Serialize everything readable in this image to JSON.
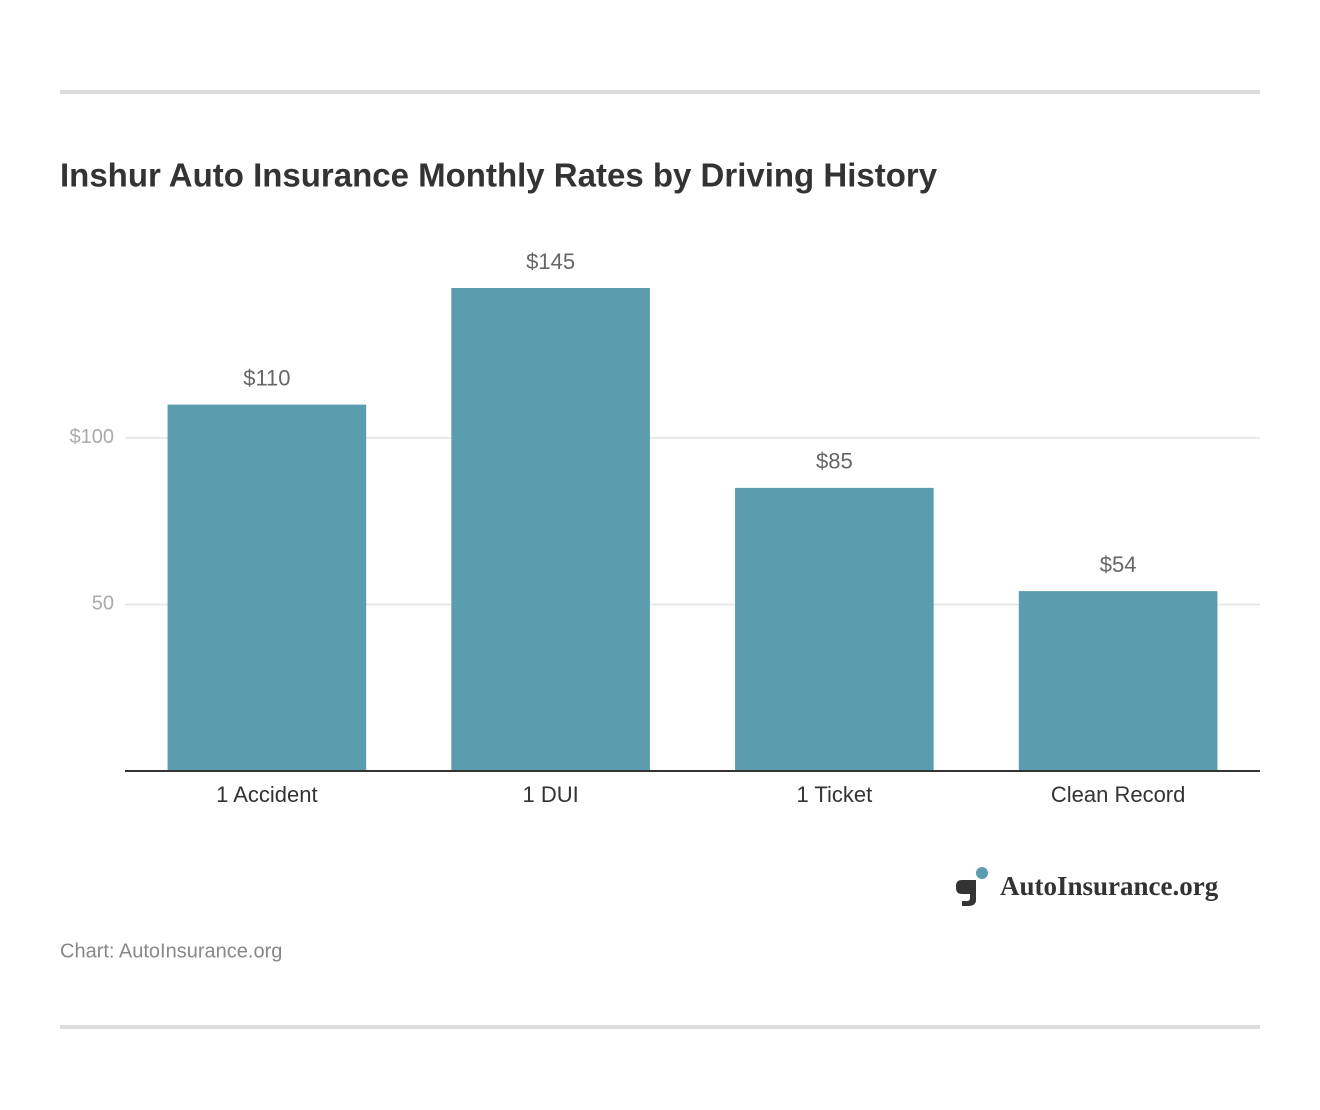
{
  "chart_data": {
    "type": "bar",
    "title": "Inshur Auto Insurance Monthly Rates by Driving History",
    "categories": [
      "1 Accident",
      "1 DUI",
      "1 Ticket",
      "Clean Record"
    ],
    "values": [
      110,
      145,
      85,
      54
    ],
    "value_labels": [
      "$110",
      "$145",
      "$85",
      "$54"
    ],
    "color": "#5b9daf",
    "ylim": [
      0,
      160
    ],
    "yticks": [
      50,
      {
        "value": 100,
        "label": "$100"
      }
    ],
    "grid": true,
    "logo": "AutoInsurance.org",
    "source": "Chart: AutoInsurance.org"
  }
}
